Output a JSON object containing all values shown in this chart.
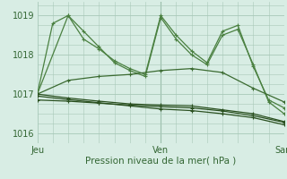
{
  "title": "Pression niveau de la mer( hPa )",
  "background_color": "#d8ede4",
  "grid_color": "#a8c8b8",
  "line_color_light": "#3a7a3a",
  "line_color_dark": "#1a4a1a",
  "xlim": [
    0,
    48
  ],
  "ylim": [
    1015.75,
    1019.35
  ],
  "yticks": [
    1016,
    1017,
    1018,
    1019
  ],
  "xtick_labels": [
    [
      "Jeu",
      0
    ],
    [
      "Ven",
      24
    ],
    [
      "Sam",
      48
    ]
  ],
  "series": [
    {
      "xs": [
        0,
        6,
        9,
        12,
        15,
        18,
        21,
        24,
        27,
        30,
        33,
        36,
        39,
        42,
        45,
        48
      ],
      "ys": [
        1017.0,
        1019.0,
        1018.4,
        1018.15,
        1017.85,
        1017.65,
        1017.5,
        1019.0,
        1018.5,
        1018.1,
        1017.8,
        1018.6,
        1018.75,
        1017.7,
        1016.85,
        1016.65
      ],
      "color": "#4a8040",
      "lw": 0.9
    },
    {
      "xs": [
        0,
        3,
        6,
        9,
        12,
        15,
        18,
        21,
        24,
        27,
        30,
        33,
        36,
        39,
        42,
        45,
        48
      ],
      "ys": [
        1017.0,
        1018.8,
        1019.0,
        1018.6,
        1018.2,
        1017.8,
        1017.6,
        1017.45,
        1018.95,
        1018.4,
        1018.0,
        1017.75,
        1018.5,
        1018.65,
        1017.75,
        1016.8,
        1016.5
      ],
      "color": "#4a8040",
      "lw": 0.9
    },
    {
      "xs": [
        0,
        6,
        12,
        18,
        24,
        30,
        36,
        42,
        48
      ],
      "ys": [
        1017.0,
        1017.35,
        1017.45,
        1017.5,
        1017.6,
        1017.65,
        1017.55,
        1017.15,
        1016.8
      ],
      "color": "#3a6a30",
      "lw": 0.9
    },
    {
      "xs": [
        0,
        6,
        12,
        18,
        24,
        30,
        36,
        42,
        48
      ],
      "ys": [
        1017.0,
        1016.9,
        1016.82,
        1016.75,
        1016.72,
        1016.7,
        1016.6,
        1016.5,
        1016.3
      ],
      "color": "#2a5020",
      "lw": 0.9
    },
    {
      "xs": [
        0,
        6,
        12,
        18,
        24,
        30,
        36,
        42,
        48
      ],
      "ys": [
        1016.85,
        1016.82,
        1016.77,
        1016.72,
        1016.68,
        1016.65,
        1016.57,
        1016.45,
        1016.28
      ],
      "color": "#2a5020",
      "lw": 0.9
    },
    {
      "xs": [
        0,
        6,
        12,
        18,
        24,
        30,
        36,
        42,
        48
      ],
      "ys": [
        1016.95,
        1016.86,
        1016.78,
        1016.7,
        1016.62,
        1016.58,
        1016.5,
        1016.4,
        1016.22
      ],
      "color": "#2a5020",
      "lw": 0.9
    }
  ],
  "marker": "+",
  "markersize": 3,
  "markeredgewidth": 0.8,
  "linewidth": 0.9
}
